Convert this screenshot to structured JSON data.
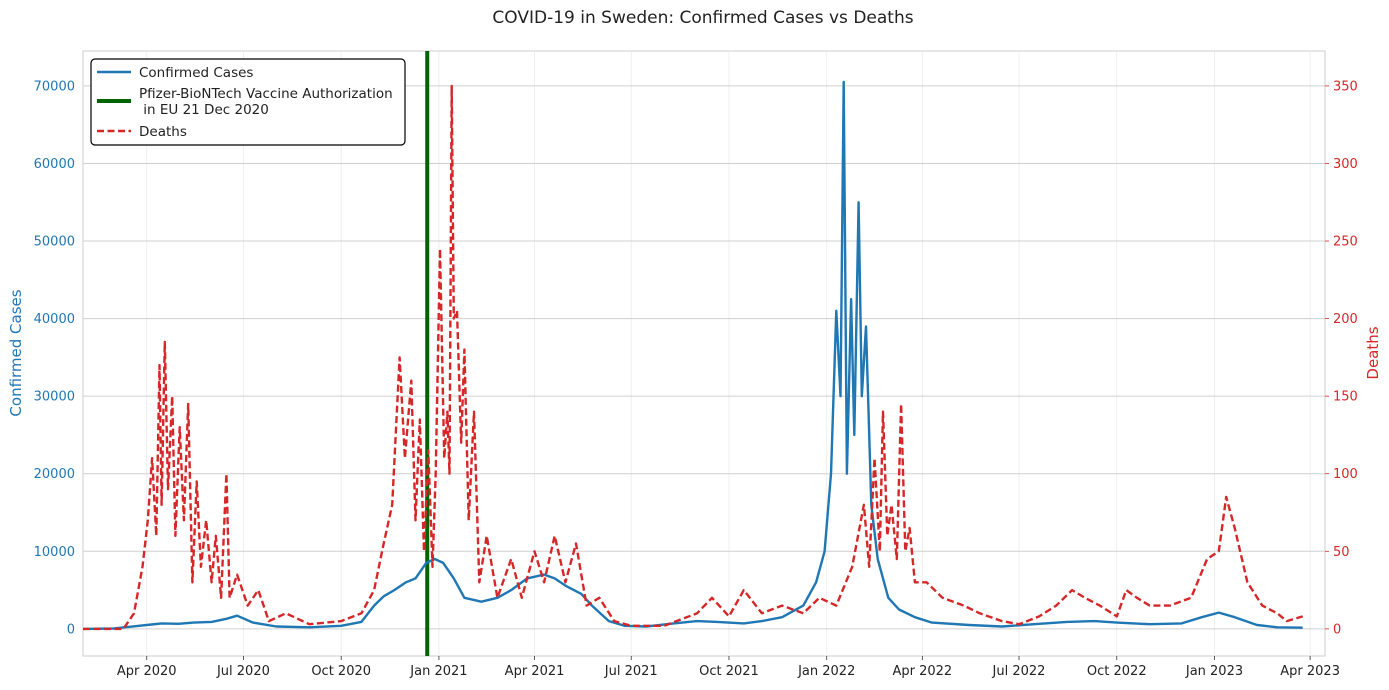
{
  "chart_data": {
    "type": "line",
    "title": "COVID-19 in Sweden: Confirmed Cases vs Deaths",
    "xlabel": "",
    "x_tick_labels": [
      "Apr 2020",
      "Jul 2020",
      "Oct 2020",
      "Jan 2021",
      "Apr 2021",
      "Jul 2021",
      "Oct 2021",
      "Jan 2022",
      "Apr 2022",
      "Jul 2022",
      "Oct 2022",
      "Jan 2023",
      "Apr 2023"
    ],
    "x_tick_dates": [
      "2020-04-01",
      "2020-07-01",
      "2020-10-01",
      "2021-01-01",
      "2021-04-01",
      "2021-07-01",
      "2021-10-01",
      "2022-01-01",
      "2022-04-01",
      "2022-07-01",
      "2022-10-01",
      "2023-01-01",
      "2023-04-01"
    ],
    "xlim": [
      "2020-02-01",
      "2023-04-15"
    ],
    "grid": true,
    "legend_position": "top-left",
    "axes": {
      "left": {
        "label": "Confirmed Cases",
        "color": "#1f77b4",
        "ylim": [
          -3500,
          74500
        ],
        "ticks": [
          0,
          10000,
          20000,
          30000,
          40000,
          50000,
          60000,
          70000
        ],
        "tick_labels": [
          "0",
          "10000",
          "20000",
          "30000",
          "40000",
          "50000",
          "60000",
          "70000"
        ]
      },
      "right": {
        "label": "Deaths",
        "color": "#d62728",
        "ylim": [
          -17.5,
          372.5
        ],
        "ticks": [
          0,
          50,
          100,
          150,
          200,
          250,
          300,
          350
        ],
        "tick_labels": [
          "0",
          "50",
          "100",
          "150",
          "200",
          "250",
          "300",
          "350"
        ]
      }
    },
    "vline": {
      "name": "Pfizer-BioNTech Vaccine Authorization\n in EU 21 Dec 2020",
      "date": "2020-12-21",
      "color": "#006400"
    },
    "series": [
      {
        "name": "Confirmed Cases",
        "axis": "left",
        "color": "#1f77b4",
        "style": "solid",
        "points": [
          [
            "2020-02-01",
            0
          ],
          [
            "2020-03-01",
            50
          ],
          [
            "2020-03-15",
            250
          ],
          [
            "2020-04-01",
            500
          ],
          [
            "2020-04-15",
            700
          ],
          [
            "2020-05-01",
            650
          ],
          [
            "2020-05-15",
            800
          ],
          [
            "2020-06-01",
            900
          ],
          [
            "2020-06-15",
            1300
          ],
          [
            "2020-06-25",
            1700
          ],
          [
            "2020-07-10",
            800
          ],
          [
            "2020-08-01",
            300
          ],
          [
            "2020-09-01",
            200
          ],
          [
            "2020-10-01",
            400
          ],
          [
            "2020-10-20",
            900
          ],
          [
            "2020-11-01",
            3000
          ],
          [
            "2020-11-10",
            4200
          ],
          [
            "2020-11-20",
            5000
          ],
          [
            "2020-12-01",
            6000
          ],
          [
            "2020-12-10",
            6500
          ],
          [
            "2020-12-20",
            8500
          ],
          [
            "2020-12-28",
            9000
          ],
          [
            "2021-01-05",
            8500
          ],
          [
            "2021-01-15",
            6500
          ],
          [
            "2021-01-25",
            4000
          ],
          [
            "2021-02-10",
            3500
          ],
          [
            "2021-02-25",
            4000
          ],
          [
            "2021-03-10",
            5000
          ],
          [
            "2021-03-25",
            6500
          ],
          [
            "2021-04-10",
            7000
          ],
          [
            "2021-04-20",
            6500
          ],
          [
            "2021-05-01",
            5500
          ],
          [
            "2021-05-15",
            4500
          ],
          [
            "2021-05-25",
            3000
          ],
          [
            "2021-06-10",
            1000
          ],
          [
            "2021-06-25",
            400
          ],
          [
            "2021-07-15",
            300
          ],
          [
            "2021-08-10",
            700
          ],
          [
            "2021-09-01",
            1000
          ],
          [
            "2021-09-20",
            900
          ],
          [
            "2021-10-15",
            700
          ],
          [
            "2021-11-01",
            1000
          ],
          [
            "2021-11-20",
            1500
          ],
          [
            "2021-12-10",
            3000
          ],
          [
            "2021-12-22",
            6000
          ],
          [
            "2021-12-30",
            10000
          ],
          [
            "2022-01-05",
            20000
          ],
          [
            "2022-01-10",
            41000
          ],
          [
            "2022-01-14",
            30000
          ],
          [
            "2022-01-17",
            70500
          ],
          [
            "2022-01-20",
            20000
          ],
          [
            "2022-01-24",
            42500
          ],
          [
            "2022-01-27",
            25000
          ],
          [
            "2022-01-31",
            55000
          ],
          [
            "2022-02-03",
            30000
          ],
          [
            "2022-02-07",
            39000
          ],
          [
            "2022-02-12",
            16000
          ],
          [
            "2022-02-18",
            9000
          ],
          [
            "2022-02-28",
            4000
          ],
          [
            "2022-03-10",
            2500
          ],
          [
            "2022-03-25",
            1500
          ],
          [
            "2022-04-10",
            800
          ],
          [
            "2022-05-15",
            500
          ],
          [
            "2022-06-15",
            300
          ],
          [
            "2022-07-15",
            600
          ],
          [
            "2022-08-15",
            900
          ],
          [
            "2022-09-10",
            1000
          ],
          [
            "2022-10-01",
            800
          ],
          [
            "2022-11-01",
            600
          ],
          [
            "2022-12-01",
            700
          ],
          [
            "2022-12-20",
            1500
          ],
          [
            "2023-01-05",
            2100
          ],
          [
            "2023-01-20",
            1500
          ],
          [
            "2023-02-10",
            500
          ],
          [
            "2023-03-01",
            200
          ],
          [
            "2023-03-25",
            150
          ]
        ]
      },
      {
        "name": "Deaths",
        "axis": "right",
        "color": "#d62728",
        "style": "dashed",
        "points": [
          [
            "2020-02-01",
            0
          ],
          [
            "2020-03-10",
            0
          ],
          [
            "2020-03-20",
            10
          ],
          [
            "2020-03-28",
            40
          ],
          [
            "2020-04-02",
            70
          ],
          [
            "2020-04-06",
            110
          ],
          [
            "2020-04-10",
            60
          ],
          [
            "2020-04-13",
            170
          ],
          [
            "2020-04-15",
            80
          ],
          [
            "2020-04-18",
            185
          ],
          [
            "2020-04-21",
            90
          ],
          [
            "2020-04-25",
            150
          ],
          [
            "2020-04-28",
            60
          ],
          [
            "2020-05-02",
            130
          ],
          [
            "2020-05-06",
            70
          ],
          [
            "2020-05-10",
            145
          ],
          [
            "2020-05-14",
            30
          ],
          [
            "2020-05-18",
            95
          ],
          [
            "2020-05-22",
            40
          ],
          [
            "2020-05-27",
            70
          ],
          [
            "2020-06-01",
            30
          ],
          [
            "2020-06-05",
            60
          ],
          [
            "2020-06-10",
            20
          ],
          [
            "2020-06-15",
            100
          ],
          [
            "2020-06-18",
            20
          ],
          [
            "2020-06-25",
            35
          ],
          [
            "2020-07-05",
            15
          ],
          [
            "2020-07-15",
            25
          ],
          [
            "2020-07-25",
            5
          ],
          [
            "2020-08-10",
            10
          ],
          [
            "2020-09-01",
            3
          ],
          [
            "2020-10-01",
            5
          ],
          [
            "2020-10-20",
            10
          ],
          [
            "2020-11-01",
            25
          ],
          [
            "2020-11-10",
            55
          ],
          [
            "2020-11-18",
            80
          ],
          [
            "2020-11-25",
            175
          ],
          [
            "2020-11-30",
            110
          ],
          [
            "2020-12-06",
            160
          ],
          [
            "2020-12-10",
            70
          ],
          [
            "2020-12-14",
            135
          ],
          [
            "2020-12-18",
            50
          ],
          [
            "2020-12-22",
            115
          ],
          [
            "2020-12-26",
            40
          ],
          [
            "2020-12-29",
            100
          ],
          [
            "2021-01-02",
            245
          ],
          [
            "2021-01-06",
            110
          ],
          [
            "2021-01-09",
            140
          ],
          [
            "2021-01-11",
            100
          ],
          [
            "2021-01-13",
            350
          ],
          [
            "2021-01-15",
            200
          ],
          [
            "2021-01-18",
            205
          ],
          [
            "2021-01-22",
            120
          ],
          [
            "2021-01-25",
            180
          ],
          [
            "2021-01-29",
            70
          ],
          [
            "2021-02-03",
            140
          ],
          [
            "2021-02-08",
            30
          ],
          [
            "2021-02-15",
            60
          ],
          [
            "2021-02-25",
            20
          ],
          [
            "2021-03-10",
            45
          ],
          [
            "2021-03-20",
            20
          ],
          [
            "2021-04-01",
            50
          ],
          [
            "2021-04-10",
            30
          ],
          [
            "2021-04-20",
            60
          ],
          [
            "2021-04-30",
            30
          ],
          [
            "2021-05-10",
            55
          ],
          [
            "2021-05-20",
            15
          ],
          [
            "2021-06-01",
            20
          ],
          [
            "2021-06-15",
            5
          ],
          [
            "2021-07-01",
            2
          ],
          [
            "2021-08-01",
            2
          ],
          [
            "2021-09-01",
            10
          ],
          [
            "2021-09-15",
            20
          ],
          [
            "2021-10-01",
            8
          ],
          [
            "2021-10-15",
            25
          ],
          [
            "2021-11-01",
            10
          ],
          [
            "2021-11-20",
            15
          ],
          [
            "2021-12-10",
            10
          ],
          [
            "2021-12-25",
            20
          ],
          [
            "2022-01-10",
            15
          ],
          [
            "2022-01-25",
            40
          ],
          [
            "2022-02-05",
            80
          ],
          [
            "2022-02-10",
            40
          ],
          [
            "2022-02-15",
            110
          ],
          [
            "2022-02-20",
            50
          ],
          [
            "2022-02-23",
            140
          ],
          [
            "2022-02-27",
            60
          ],
          [
            "2022-03-03",
            80
          ],
          [
            "2022-03-08",
            45
          ],
          [
            "2022-03-12",
            145
          ],
          [
            "2022-03-16",
            50
          ],
          [
            "2022-03-20",
            65
          ],
          [
            "2022-03-25",
            30
          ],
          [
            "2022-04-05",
            30
          ],
          [
            "2022-04-20",
            20
          ],
          [
            "2022-05-10",
            15
          ],
          [
            "2022-05-25",
            10
          ],
          [
            "2022-06-15",
            5
          ],
          [
            "2022-07-01",
            3
          ],
          [
            "2022-07-20",
            8
          ],
          [
            "2022-08-05",
            15
          ],
          [
            "2022-08-20",
            25
          ],
          [
            "2022-09-01",
            20
          ],
          [
            "2022-09-15",
            15
          ],
          [
            "2022-10-01",
            8
          ],
          [
            "2022-10-10",
            25
          ],
          [
            "2022-10-20",
            20
          ],
          [
            "2022-11-01",
            15
          ],
          [
            "2022-11-20",
            15
          ],
          [
            "2022-12-10",
            20
          ],
          [
            "2022-12-25",
            45
          ],
          [
            "2023-01-05",
            50
          ],
          [
            "2023-01-12",
            85
          ],
          [
            "2023-01-20",
            65
          ],
          [
            "2023-02-01",
            30
          ],
          [
            "2023-02-15",
            15
          ],
          [
            "2023-03-01",
            10
          ],
          [
            "2023-03-10",
            5
          ],
          [
            "2023-03-25",
            8
          ]
        ]
      }
    ]
  }
}
